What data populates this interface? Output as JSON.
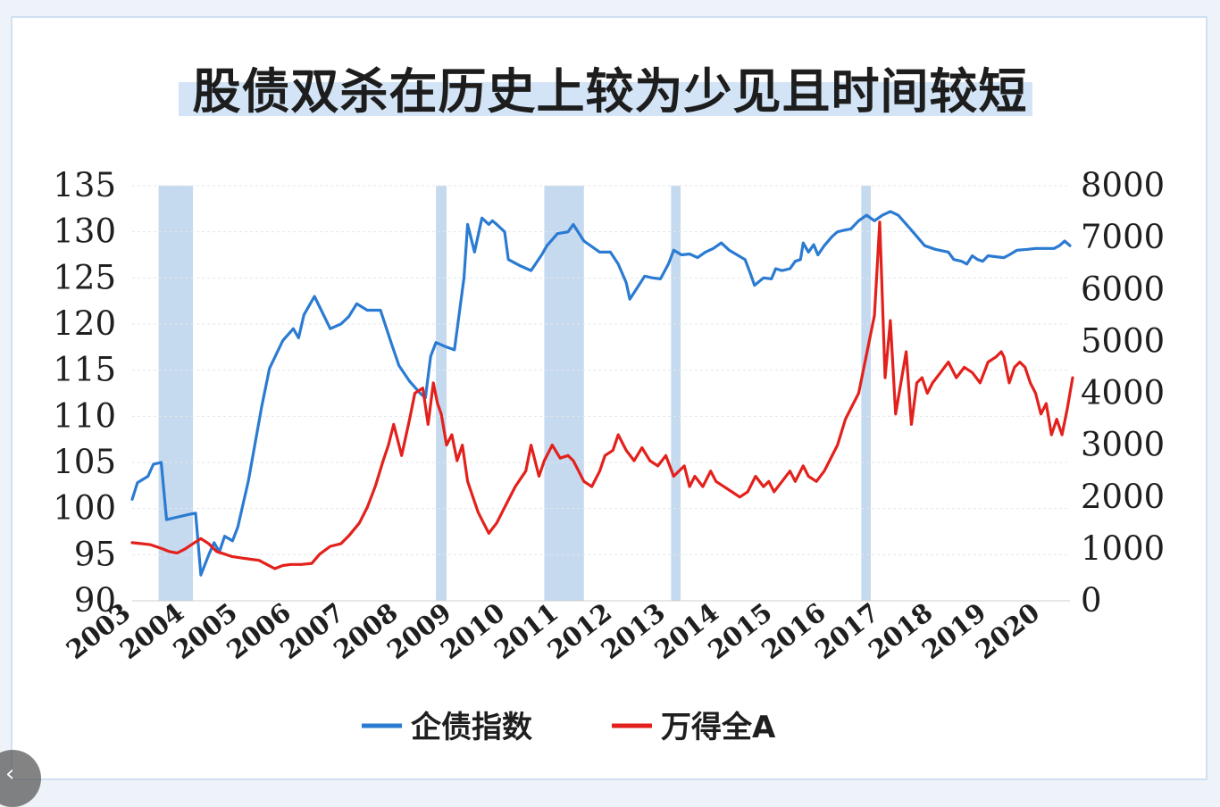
{
  "title": "股债双杀在历史上较为少见且时间较短",
  "nav": {
    "prev_icon": "‹"
  },
  "chart_data": {
    "type": "line",
    "title": "股债双杀在历史上较为少见且时间较短",
    "y_left": {
      "min": 90,
      "max": 135,
      "ticks": [
        90,
        95,
        100,
        105,
        110,
        115,
        120,
        125,
        130,
        135
      ]
    },
    "y_right": {
      "min": 0,
      "max": 8000,
      "ticks": [
        0,
        1000,
        2000,
        3000,
        4000,
        5000,
        6000,
        7000,
        8000
      ]
    },
    "x": {
      "min": 2003.0,
      "max": 2020.75,
      "tick_labels": [
        "2003",
        "2004",
        "2005",
        "2006",
        "2007",
        "2008",
        "2009",
        "2010",
        "2011",
        "2012",
        "2013",
        "2014",
        "2015",
        "2016",
        "2017",
        "2018",
        "2019",
        "2020"
      ]
    },
    "grid": true,
    "legend_position": "bottom",
    "shaded_periods": [
      [
        2003.5,
        2004.15
      ],
      [
        2008.75,
        2008.95
      ],
      [
        2010.8,
        2011.55
      ],
      [
        2013.2,
        2013.38
      ],
      [
        2016.8,
        2016.98
      ]
    ],
    "series": [
      {
        "name": "企债指数",
        "axis": "left",
        "color": "#2a7bd1",
        "points": [
          [
            2003.0,
            101.0
          ],
          [
            2003.1,
            102.8
          ],
          [
            2003.3,
            103.5
          ],
          [
            2003.4,
            104.8
          ],
          [
            2003.55,
            105.0
          ],
          [
            2003.65,
            98.8
          ],
          [
            2003.8,
            99.0
          ],
          [
            2004.1,
            99.4
          ],
          [
            2004.2,
            99.5
          ],
          [
            2004.3,
            92.8
          ],
          [
            2004.45,
            95.0
          ],
          [
            2004.55,
            96.3
          ],
          [
            2004.65,
            95.3
          ],
          [
            2004.75,
            97.0
          ],
          [
            2004.9,
            96.5
          ],
          [
            2005.0,
            98.0
          ],
          [
            2005.2,
            103.0
          ],
          [
            2005.45,
            111.0
          ],
          [
            2005.6,
            115.2
          ],
          [
            2005.85,
            118.2
          ],
          [
            2006.05,
            119.5
          ],
          [
            2006.15,
            118.5
          ],
          [
            2006.25,
            121.0
          ],
          [
            2006.45,
            123.0
          ],
          [
            2006.75,
            119.5
          ],
          [
            2006.95,
            120.0
          ],
          [
            2007.1,
            120.8
          ],
          [
            2007.25,
            122.2
          ],
          [
            2007.45,
            121.5
          ],
          [
            2007.7,
            121.5
          ],
          [
            2007.9,
            118.0
          ],
          [
            2008.05,
            115.5
          ],
          [
            2008.25,
            113.8
          ],
          [
            2008.45,
            112.5
          ],
          [
            2008.55,
            112.0
          ],
          [
            2008.65,
            116.5
          ],
          [
            2008.75,
            118.0
          ],
          [
            2008.95,
            117.5
          ],
          [
            2009.1,
            117.2
          ],
          [
            2009.28,
            125.0
          ],
          [
            2009.35,
            130.8
          ],
          [
            2009.48,
            127.8
          ],
          [
            2009.62,
            131.5
          ],
          [
            2009.75,
            130.8
          ],
          [
            2009.82,
            131.2
          ],
          [
            2009.9,
            130.8
          ],
          [
            2010.05,
            130.0
          ],
          [
            2010.12,
            127.0
          ],
          [
            2010.35,
            126.3
          ],
          [
            2010.55,
            125.8
          ],
          [
            2010.75,
            127.5
          ],
          [
            2010.85,
            128.5
          ],
          [
            2011.05,
            129.8
          ],
          [
            2011.25,
            130.0
          ],
          [
            2011.35,
            130.8
          ],
          [
            2011.55,
            129.0
          ],
          [
            2011.85,
            127.8
          ],
          [
            2012.05,
            127.8
          ],
          [
            2012.2,
            126.5
          ],
          [
            2012.35,
            124.5
          ],
          [
            2012.42,
            122.7
          ],
          [
            2012.6,
            124.3
          ],
          [
            2012.7,
            125.2
          ],
          [
            2012.85,
            125.0
          ],
          [
            2013.0,
            124.9
          ],
          [
            2013.15,
            126.5
          ],
          [
            2013.25,
            128.0
          ],
          [
            2013.4,
            127.5
          ],
          [
            2013.55,
            127.6
          ],
          [
            2013.7,
            127.2
          ],
          [
            2013.85,
            127.8
          ],
          [
            2014.0,
            128.2
          ],
          [
            2014.15,
            128.8
          ],
          [
            2014.3,
            128.0
          ],
          [
            2014.45,
            127.5
          ],
          [
            2014.6,
            127.0
          ],
          [
            2014.7,
            125.5
          ],
          [
            2014.78,
            124.2
          ],
          [
            2014.95,
            125.0
          ],
          [
            2015.1,
            124.9
          ],
          [
            2015.18,
            126.0
          ],
          [
            2015.3,
            125.8
          ],
          [
            2015.45,
            126.0
          ],
          [
            2015.55,
            126.8
          ],
          [
            2015.65,
            127.0
          ],
          [
            2015.7,
            128.8
          ],
          [
            2015.8,
            127.8
          ],
          [
            2015.9,
            128.6
          ],
          [
            2015.98,
            127.5
          ],
          [
            2016.1,
            128.5
          ],
          [
            2016.25,
            129.5
          ],
          [
            2016.35,
            130.0
          ],
          [
            2016.5,
            130.2
          ],
          [
            2016.6,
            130.3
          ],
          [
            2016.75,
            131.2
          ],
          [
            2016.9,
            131.8
          ],
          [
            2017.05,
            131.2
          ],
          [
            2017.2,
            131.8
          ],
          [
            2017.35,
            132.2
          ],
          [
            2017.5,
            131.8
          ],
          [
            2017.7,
            130.5
          ],
          [
            2017.85,
            129.5
          ],
          [
            2018.0,
            128.5
          ],
          [
            2018.2,
            128.1
          ],
          [
            2018.45,
            127.8
          ],
          [
            2018.55,
            127.0
          ],
          [
            2018.7,
            126.8
          ],
          [
            2018.8,
            126.5
          ],
          [
            2018.9,
            127.4
          ],
          [
            2019.0,
            127.0
          ],
          [
            2019.1,
            126.8
          ],
          [
            2019.2,
            127.4
          ],
          [
            2019.35,
            127.3
          ],
          [
            2019.5,
            127.2
          ],
          [
            2019.6,
            127.5
          ],
          [
            2019.75,
            128.0
          ],
          [
            2019.95,
            128.1
          ],
          [
            2020.1,
            128.2
          ],
          [
            2020.3,
            128.2
          ],
          [
            2020.45,
            128.2
          ],
          [
            2020.55,
            128.5
          ],
          [
            2020.65,
            129.0
          ],
          [
            2020.75,
            128.5
          ]
        ]
      },
      {
        "name": "万得全A",
        "axis": "right",
        "color": "#e3211c",
        "points": [
          [
            2003.0,
            1120
          ],
          [
            2003.2,
            1100
          ],
          [
            2003.35,
            1080
          ],
          [
            2003.55,
            1010
          ],
          [
            2003.7,
            950
          ],
          [
            2003.85,
            920
          ],
          [
            2004.0,
            1000
          ],
          [
            2004.15,
            1100
          ],
          [
            2004.3,
            1200
          ],
          [
            2004.45,
            1100
          ],
          [
            2004.6,
            950
          ],
          [
            2004.75,
            900
          ],
          [
            2004.9,
            850
          ],
          [
            2005.1,
            820
          ],
          [
            2005.25,
            800
          ],
          [
            2005.4,
            780
          ],
          [
            2005.55,
            700
          ],
          [
            2005.7,
            620
          ],
          [
            2005.85,
            680
          ],
          [
            2006.0,
            700
          ],
          [
            2006.2,
            700
          ],
          [
            2006.4,
            720
          ],
          [
            2006.55,
            900
          ],
          [
            2006.75,
            1050
          ],
          [
            2006.95,
            1100
          ],
          [
            2007.1,
            1250
          ],
          [
            2007.3,
            1500
          ],
          [
            2007.45,
            1800
          ],
          [
            2007.6,
            2200
          ],
          [
            2007.75,
            2700
          ],
          [
            2007.85,
            3000
          ],
          [
            2007.95,
            3400
          ],
          [
            2008.1,
            2800
          ],
          [
            2008.25,
            3500
          ],
          [
            2008.35,
            4000
          ],
          [
            2008.5,
            4100
          ],
          [
            2008.6,
            3400
          ],
          [
            2008.7,
            4200
          ],
          [
            2008.78,
            3800
          ],
          [
            2008.85,
            3600
          ],
          [
            2008.95,
            3000
          ],
          [
            2009.05,
            3200
          ],
          [
            2009.15,
            2700
          ],
          [
            2009.25,
            3000
          ],
          [
            2009.35,
            2300
          ],
          [
            2009.45,
            2000
          ],
          [
            2009.55,
            1700
          ],
          [
            2009.65,
            1500
          ],
          [
            2009.75,
            1300
          ],
          [
            2009.9,
            1500
          ],
          [
            2010.05,
            1800
          ],
          [
            2010.25,
            2200
          ],
          [
            2010.45,
            2500
          ],
          [
            2010.55,
            3000
          ],
          [
            2010.7,
            2400
          ],
          [
            2010.8,
            2700
          ],
          [
            2010.95,
            3000
          ],
          [
            2011.1,
            2750
          ],
          [
            2011.25,
            2800
          ],
          [
            2011.35,
            2700
          ],
          [
            2011.45,
            2500
          ],
          [
            2011.55,
            2300
          ],
          [
            2011.7,
            2200
          ],
          [
            2011.85,
            2500
          ],
          [
            2011.95,
            2800
          ],
          [
            2012.1,
            2900
          ],
          [
            2012.2,
            3200
          ],
          [
            2012.35,
            2900
          ],
          [
            2012.5,
            2700
          ],
          [
            2012.65,
            2950
          ],
          [
            2012.8,
            2700
          ],
          [
            2012.95,
            2600
          ],
          [
            2013.1,
            2800
          ],
          [
            2013.25,
            2400
          ],
          [
            2013.45,
            2600
          ],
          [
            2013.55,
            2200
          ],
          [
            2013.65,
            2400
          ],
          [
            2013.8,
            2200
          ],
          [
            2013.95,
            2500
          ],
          [
            2014.05,
            2300
          ],
          [
            2014.2,
            2200
          ],
          [
            2014.35,
            2100
          ],
          [
            2014.5,
            2000
          ],
          [
            2014.65,
            2100
          ],
          [
            2014.8,
            2400
          ],
          [
            2014.95,
            2200
          ],
          [
            2015.05,
            2300
          ],
          [
            2015.15,
            2100
          ],
          [
            2015.3,
            2300
          ],
          [
            2015.45,
            2500
          ],
          [
            2015.55,
            2300
          ],
          [
            2015.7,
            2600
          ],
          [
            2015.8,
            2400
          ],
          [
            2015.95,
            2300
          ],
          [
            2016.1,
            2500
          ],
          [
            2016.2,
            2700
          ],
          [
            2016.35,
            3000
          ],
          [
            2016.5,
            3500
          ],
          [
            2016.6,
            3700
          ],
          [
            2016.75,
            4000
          ],
          [
            2016.85,
            4500
          ],
          [
            2016.95,
            5000
          ],
          [
            2017.05,
            5500
          ],
          [
            2017.15,
            7300
          ],
          [
            2017.25,
            4300
          ],
          [
            2017.35,
            5400
          ],
          [
            2017.45,
            3600
          ],
          [
            2017.55,
            4200
          ],
          [
            2017.65,
            4800
          ],
          [
            2017.75,
            3400
          ],
          [
            2017.85,
            4200
          ],
          [
            2017.95,
            4300
          ],
          [
            2018.05,
            4000
          ],
          [
            2018.15,
            4200
          ],
          [
            2018.3,
            4400
          ],
          [
            2018.45,
            4600
          ],
          [
            2018.6,
            4300
          ],
          [
            2018.75,
            4500
          ],
          [
            2018.9,
            4400
          ],
          [
            2019.05,
            4200
          ],
          [
            2019.2,
            4600
          ],
          [
            2019.35,
            4700
          ],
          [
            2019.45,
            4800
          ],
          [
            2019.5,
            4700
          ],
          [
            2019.6,
            4200
          ],
          [
            2019.7,
            4500
          ],
          [
            2019.8,
            4600
          ],
          [
            2019.9,
            4500
          ],
          [
            2020.0,
            4200
          ],
          [
            2020.1,
            4000
          ],
          [
            2020.2,
            3600
          ],
          [
            2020.3,
            3800
          ],
          [
            2020.4,
            3200
          ],
          [
            2020.5,
            3500
          ],
          [
            2020.6,
            3200
          ],
          [
            2020.7,
            3700
          ],
          [
            2020.8,
            4300
          ]
        ]
      }
    ]
  }
}
